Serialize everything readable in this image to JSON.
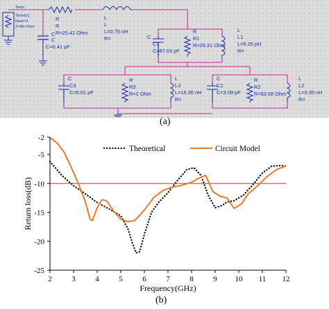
{
  "figure": {
    "panel_a_label": "(a)",
    "panel_b_label": "(b)"
  },
  "schematic": {
    "term": {
      "title": "Term",
      "name": "TermG1",
      "num": "Num=1",
      "z": "Z=50 Ohm"
    },
    "series_R": {
      "type": "R",
      "name": "R",
      "value": "R=25.42 Ohm"
    },
    "series_L": {
      "type": "L",
      "name": "L",
      "value": "L=0.75 nH",
      "r": "R="
    },
    "shunt_C": {
      "type": "C",
      "name": "C",
      "value": "C=0.41 pF"
    },
    "tank1": {
      "c_type": "C",
      "c_name": "C1",
      "c_value": "C=67.03 pF",
      "r_type": "R",
      "r_name": "R1",
      "r_value": "R=29.31 Ohm",
      "l_type": "L",
      "l_name": "L1",
      "l_value": "L=5.25 pH",
      "l_r": "R="
    },
    "tank3": {
      "c_type": "C",
      "c_name": "C3",
      "c_value": "C=0.01 pF",
      "r_type": "R",
      "r_name": "R3",
      "r_value": "R=1 Ohm",
      "l_type": "L",
      "l_name": "L3",
      "l_value": "L=15.30 nH",
      "l_r": "R="
    },
    "tank2": {
      "c_type": "C",
      "c_name": "C2",
      "c_value": "C=3.09 pF",
      "r_type": "R",
      "r_name": "R2",
      "r_value": "R=63.58 Ohm",
      "l_type": "L",
      "l_name": "L2",
      "l_value": "L=3.30 nH",
      "l_r": "R="
    }
  },
  "chart_data": {
    "type": "line",
    "xlabel": "Frequency(GHz)",
    "ylabel": "Return loss(dB)",
    "xlim": [
      2,
      12
    ],
    "ylim": [
      -25,
      -2
    ],
    "xticks": [
      2,
      3,
      4,
      5,
      6,
      7,
      8,
      9,
      10,
      11,
      12
    ],
    "yticks": [
      -25,
      -20,
      -15,
      -10,
      -5,
      -2
    ],
    "reference_line": {
      "y": -10,
      "color": "#e8474f"
    },
    "legend_position": "top",
    "series": [
      {
        "name": "Theoretical",
        "style": "dotted",
        "color": "#111111",
        "x": [
          2.0,
          2.5,
          3.0,
          3.5,
          4.0,
          4.5,
          5.0,
          5.3,
          5.5,
          5.65,
          5.8,
          6.0,
          6.3,
          6.6,
          7.0,
          7.4,
          7.8,
          8.1,
          8.4,
          8.7,
          9.0,
          9.3,
          9.5,
          9.8,
          10.2,
          10.6,
          11.0,
          11.4,
          11.8,
          12.0
        ],
        "values": [
          -6.2,
          -8.6,
          -10.4,
          -11.8,
          -13.3,
          -14.4,
          -15.6,
          -17.8,
          -20.4,
          -22.0,
          -21.8,
          -18.8,
          -15.0,
          -13.3,
          -11.6,
          -9.5,
          -7.6,
          -7.3,
          -8.6,
          -12.0,
          -14.2,
          -13.8,
          -13.2,
          -13.0,
          -12.0,
          -10.2,
          -8.2,
          -7.0,
          -6.9,
          -7.0
        ]
      },
      {
        "name": "Circuit Model",
        "style": "solid",
        "color": "#e87a2c",
        "x": [
          2.0,
          2.3,
          2.6,
          2.9,
          3.2,
          3.5,
          3.7,
          3.8,
          4.0,
          4.2,
          4.4,
          4.7,
          5.0,
          5.3,
          5.6,
          6.0,
          6.4,
          6.8,
          7.2,
          7.6,
          8.0,
          8.3,
          8.6,
          8.9,
          9.2,
          9.5,
          9.8,
          10.1,
          10.4,
          10.8,
          11.2,
          11.6,
          12.0
        ],
        "values": [
          -2.1,
          -3.0,
          -4.6,
          -7.2,
          -10.0,
          -13.2,
          -16.2,
          -16.4,
          -14.2,
          -12.8,
          -13.0,
          -14.8,
          -16.2,
          -16.6,
          -16.4,
          -14.6,
          -12.4,
          -11.2,
          -10.6,
          -10.3,
          -9.8,
          -9.1,
          -8.6,
          -11.4,
          -12.2,
          -12.5,
          -14.3,
          -13.6,
          -11.8,
          -10.4,
          -8.8,
          -7.6,
          -7.0
        ]
      }
    ]
  }
}
